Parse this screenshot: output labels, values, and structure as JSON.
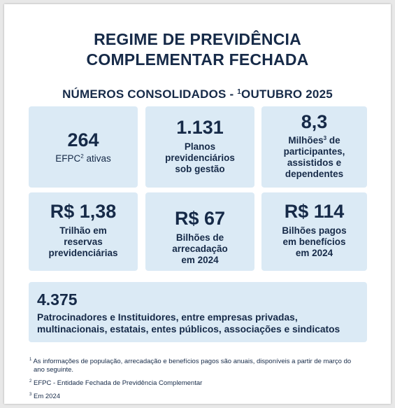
{
  "header": {
    "title_line1": "REGIME DE PREVIDÊNCIA",
    "title_line2": "COMPLEMENTAR FECHADA",
    "subtitle_prefix": "NÚMEROS CONSOLIDADOS - ",
    "subtitle_sup": "1",
    "subtitle_suffix": "OUTUBRO 2025"
  },
  "stats": [
    {
      "value": "264",
      "label_lines": [
        "EFPC",
        "2",
        " ativas"
      ]
    },
    {
      "value": "1.131",
      "label_lines": [
        "Planos",
        "previdenciários",
        "sob gestão"
      ]
    },
    {
      "value": "8,3",
      "label_lines": [
        "Milhões",
        "3",
        " de",
        "participantes,",
        "assistidos e",
        "dependentes"
      ]
    },
    {
      "value": "R$ 1,38",
      "label_lines": [
        "Trilhão em",
        "reservas",
        "previdenciárias"
      ]
    },
    {
      "value": "R$ 67",
      "label_lines": [
        "Bilhões de",
        "arrecadação",
        "em 2024"
      ]
    },
    {
      "value": "R$ 114",
      "label_lines": [
        "Bilhões pagos",
        "em benefícios",
        "em 2024"
      ]
    }
  ],
  "wide_stat": {
    "value": "4.375",
    "label_line1": "Patrocinadores e Instituidores, entre empresas privadas,",
    "label_line2": "multinacionais, estatais, entes públicos, associações e sindicatos"
  },
  "footnotes": [
    {
      "mark": "1",
      "text": "As informações de população, arrecadação e benefícios pagos são anuais, disponíveis a partir de março do ano seguinte."
    },
    {
      "mark": "2",
      "text": "EFPC - Entidade Fechada de Previdência Complementar"
    },
    {
      "mark": "3",
      "text": "Em 2024"
    }
  ]
}
